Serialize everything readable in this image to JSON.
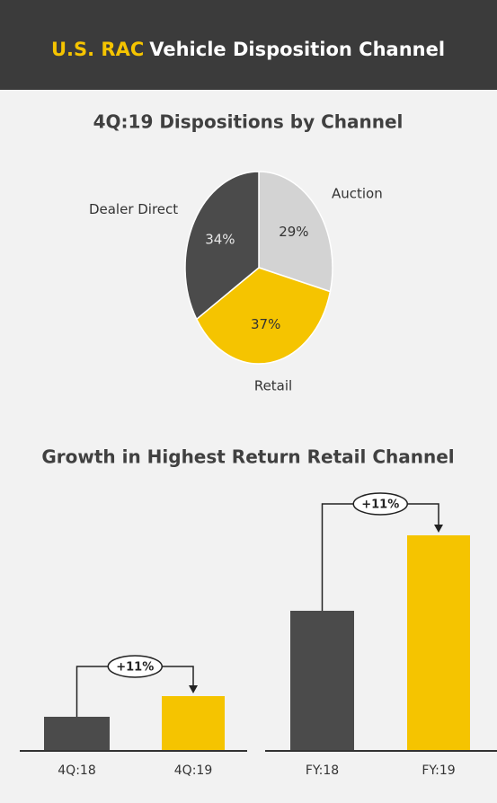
{
  "header": {
    "title_highlight": "U.S. RAC",
    "title_rest": "Vehicle Disposition Channel"
  },
  "section_title": "Growth in Highest Return Retail Channel",
  "chart_data": [
    {
      "type": "pie",
      "title": "4Q:19 Dispositions by Channel",
      "categories": [
        "Auction",
        "Retail",
        "Dealer Direct"
      ],
      "values": [
        29,
        37,
        34
      ],
      "value_labels": [
        "29%",
        "37%",
        "34%"
      ],
      "colors": [
        "#d3d3d3",
        "#f5c400",
        "#4b4b4b"
      ]
    },
    {
      "type": "bar",
      "categories": [
        "4Q:18",
        "4Q:19"
      ],
      "values": [
        38,
        61
      ],
      "colors": [
        "#4b4b4b",
        "#f5c400"
      ],
      "ylim": [
        0,
        250
      ],
      "annotation": "+11%"
    },
    {
      "type": "bar",
      "categories": [
        "FY:18",
        "FY:19"
      ],
      "values": [
        156,
        240
      ],
      "colors": [
        "#4b4b4b",
        "#f5c400"
      ],
      "ylim": [
        0,
        250
      ],
      "annotation": "+11%"
    }
  ]
}
